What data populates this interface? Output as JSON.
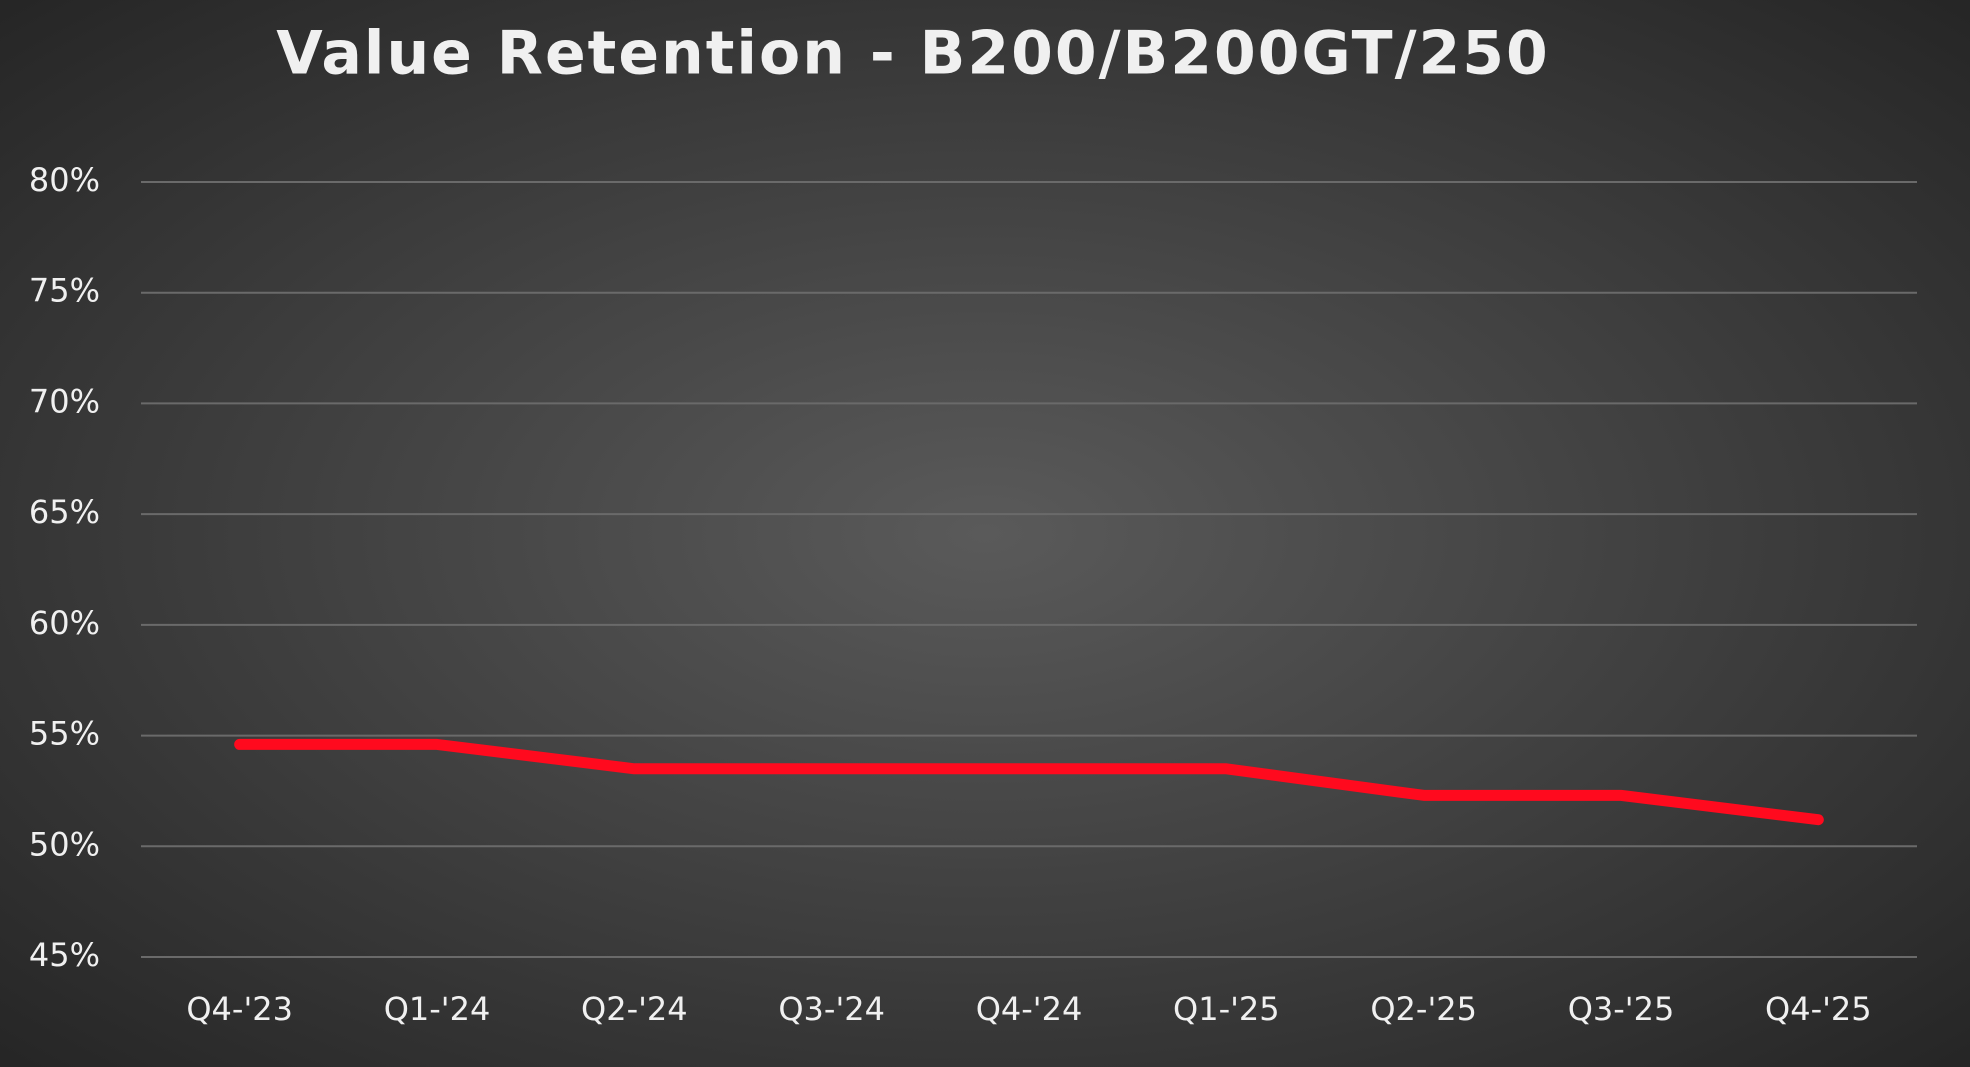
{
  "chart_data": {
    "type": "line",
    "title": "Value Retention - B200/B200GT/250",
    "categories": [
      "Q4-'23",
      "Q1-'24",
      "Q2-'24",
      "Q3-'24",
      "Q4-'24",
      "Q1-'25",
      "Q2-'25",
      "Q3-'25",
      "Q4-'25"
    ],
    "series": [
      {
        "color": "#ff0a1e",
        "values": [
          54.6,
          54.6,
          53.5,
          53.5,
          53.5,
          53.5,
          52.3,
          52.3,
          51.2
        ]
      }
    ],
    "ylim": [
      45,
      80
    ],
    "yticks": [
      {
        "value": 45,
        "label": "45%"
      },
      {
        "value": 50,
        "label": "50%"
      },
      {
        "value": 55,
        "label": "55%"
      },
      {
        "value": 60,
        "label": "60%"
      },
      {
        "value": 65,
        "label": "65%"
      },
      {
        "value": 70,
        "label": "70%"
      },
      {
        "value": 75,
        "label": "75%"
      },
      {
        "value": 80,
        "label": "80%"
      }
    ],
    "grid": true
  }
}
